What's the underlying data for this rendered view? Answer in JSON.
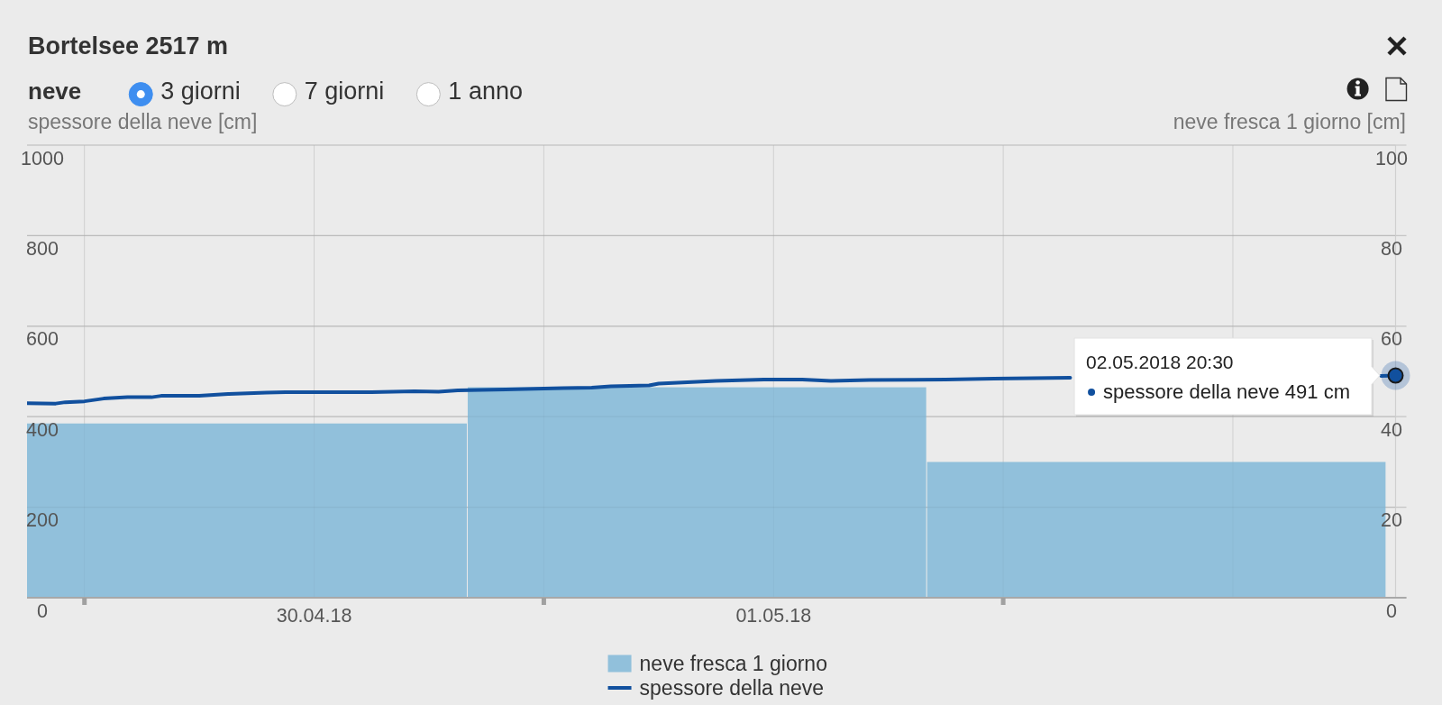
{
  "chart_data": {
    "type": "bar",
    "title": "Bortelsee 2517 m",
    "subtitle": "neve",
    "ylabel": "spessore della neve [cm]",
    "y2label": "neve fresca 1 giorno [cm]",
    "xlim": [
      "2018-04-29T21:00",
      "2018-05-02T20:30"
    ],
    "xticks": [
      {
        "value": "2018-04-30T00:00",
        "label": null
      },
      {
        "value": "2018-04-30T12:00",
        "label": "30.04.18"
      },
      {
        "value": "2018-05-01T00:00",
        "label": null
      },
      {
        "value": "2018-05-01T12:00",
        "label": "01.05.18"
      },
      {
        "value": "2018-05-02T00:00",
        "label": null
      },
      {
        "value": "2018-05-02T12:00",
        "label": null
      }
    ],
    "ylim": [
      0,
      1000
    ],
    "yticks": [
      0,
      200,
      400,
      600,
      800,
      1000
    ],
    "y2lim": [
      0,
      100
    ],
    "y2ticks": [
      0,
      20,
      40,
      60,
      80,
      100
    ],
    "grid": true,
    "legend": "bottom",
    "series": [
      {
        "name": "neve fresca 1 giorno",
        "axis": "y2",
        "color": "#91c0db",
        "x": [
          "2018-04-30T08:00",
          "2018-05-01T08:00",
          "2018-05-02T08:00"
        ],
        "values": [
          38.5,
          46.5,
          30
        ]
      },
      {
        "name": "spessore della neve",
        "type": "line",
        "color": "#11509e",
        "x": [
          "2018-04-29T21:00",
          "2018-04-29T22:30",
          "2018-04-29T23:00",
          "2018-04-30T00:00",
          "2018-04-30T01:00",
          "2018-04-30T02:15",
          "2018-04-30T03:30",
          "2018-04-30T04:00",
          "2018-04-30T06:00",
          "2018-04-30T07:30",
          "2018-04-30T09:30",
          "2018-04-30T10:30",
          "2018-04-30T15:00",
          "2018-04-30T17:15",
          "2018-04-30T18:30",
          "2018-04-30T19:30",
          "2018-04-30T22:00",
          "2018-05-01T01:00",
          "2018-05-01T02:30",
          "2018-05-01T03:30",
          "2018-05-01T05:30",
          "2018-05-01T06:00",
          "2018-05-01T07:30",
          "2018-05-01T09:00",
          "2018-05-01T11:30",
          "2018-05-01T13:30",
          "2018-05-01T15:00",
          "2018-05-01T17:00",
          "2018-05-01T21:00",
          "2018-05-01T23:30",
          "2018-05-02T03:30",
          "2018-05-02T05:00",
          "2018-05-02T19:45",
          "2018-05-02T20:30"
        ],
        "values": [
          430,
          429,
          432,
          434,
          440,
          443,
          443,
          446,
          446,
          450,
          453,
          454,
          454,
          456,
          455,
          458,
          460,
          463,
          464,
          467,
          469,
          473,
          476,
          479,
          482,
          482,
          479,
          481,
          482,
          484,
          486,
          null,
          490,
          491
        ]
      }
    ],
    "annotations": [
      "3 giorni",
      "7 giorni",
      "1 anno",
      {
        "text": "02.05.2018 20:30\nspessore della neve 491 cm",
        "x": "2018-05-02T20:30",
        "y": 491
      }
    ]
  }
}
